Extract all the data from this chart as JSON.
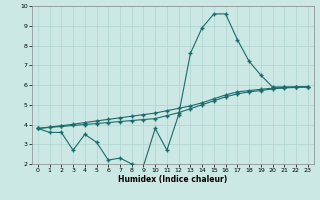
{
  "title": "",
  "xlabel": "Humidex (Indice chaleur)",
  "bg_color": "#cce8e4",
  "line_color": "#1a6b6b",
  "grid_color": "#b0d4d0",
  "xlim": [
    -0.5,
    23.5
  ],
  "ylim": [
    2,
    10
  ],
  "xticks": [
    0,
    1,
    2,
    3,
    4,
    5,
    6,
    7,
    8,
    9,
    10,
    11,
    12,
    13,
    14,
    15,
    16,
    17,
    18,
    19,
    20,
    21,
    22,
    23
  ],
  "yticks": [
    2,
    3,
    4,
    5,
    6,
    7,
    8,
    9,
    10
  ],
  "line1_x": [
    0,
    1,
    2,
    3,
    4,
    5,
    6,
    7,
    8,
    9,
    10,
    11,
    12,
    13,
    14,
    15,
    16,
    17,
    18,
    19,
    20,
    21,
    22,
    23
  ],
  "line1_y": [
    3.8,
    3.6,
    3.6,
    2.7,
    3.5,
    3.1,
    2.2,
    2.3,
    2.0,
    1.9,
    3.8,
    2.7,
    4.5,
    7.6,
    8.9,
    9.6,
    9.6,
    8.3,
    7.2,
    6.5,
    5.9,
    5.9,
    5.9,
    5.9
  ],
  "line2_x": [
    0,
    1,
    2,
    3,
    4,
    5,
    6,
    7,
    8,
    9,
    10,
    11,
    12,
    13,
    14,
    15,
    16,
    17,
    18,
    19,
    20,
    21,
    22,
    23
  ],
  "line2_y": [
    3.8,
    3.85,
    3.9,
    3.95,
    4.0,
    4.05,
    4.1,
    4.15,
    4.2,
    4.25,
    4.3,
    4.45,
    4.6,
    4.8,
    5.0,
    5.2,
    5.4,
    5.55,
    5.65,
    5.72,
    5.8,
    5.85,
    5.88,
    5.9
  ],
  "line3_x": [
    0,
    1,
    2,
    3,
    4,
    5,
    6,
    7,
    8,
    9,
    10,
    11,
    12,
    13,
    14,
    15,
    16,
    17,
    18,
    19,
    20,
    21,
    22,
    23
  ],
  "line3_y": [
    3.8,
    3.87,
    3.94,
    4.01,
    4.1,
    4.18,
    4.26,
    4.34,
    4.42,
    4.5,
    4.58,
    4.7,
    4.82,
    4.94,
    5.1,
    5.3,
    5.5,
    5.65,
    5.72,
    5.78,
    5.84,
    5.88,
    5.9,
    5.92
  ],
  "marker": "+",
  "markersize": 3,
  "linewidth": 0.8
}
